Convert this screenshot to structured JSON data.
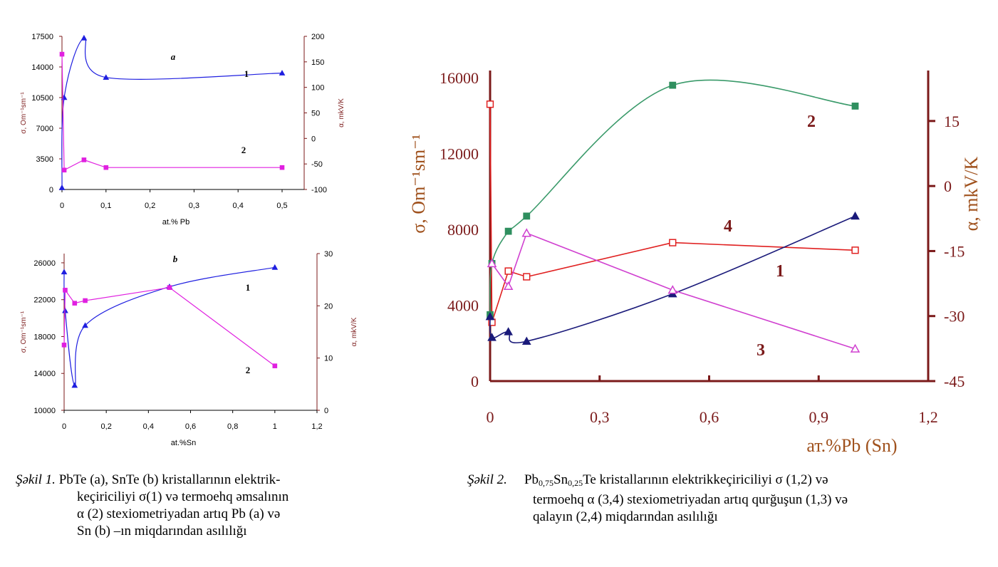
{
  "colors": {
    "axis_dark_red": "#7b1a1a",
    "blue": "#1f1fe0",
    "magenta": "#e020e0",
    "navy": "#1a1a7a",
    "green": "#3a9a6a",
    "green_marker": "#2f8f5f",
    "red": "#e02020",
    "violet": "#d040d0"
  },
  "chart_data": [
    {
      "id": "fig1a",
      "type": "line",
      "title": "a",
      "xlabel": "at.% Pb",
      "ylabel_left": "σ, Om⁻¹sm⁻¹",
      "ylabel_right": "α, mkV/K",
      "xlim": [
        0,
        0.55
      ],
      "ylim_left": [
        0,
        17500
      ],
      "ylim_right": [
        -100,
        200
      ],
      "x_ticks": [
        "0",
        "0,1",
        "0,2",
        "0,3",
        "0,4",
        "0,5"
      ],
      "y_left_ticks": [
        "0",
        "3500",
        "7000",
        "10500",
        "14000",
        "17500"
      ],
      "y_right_ticks": [
        "-100",
        "-50",
        "0",
        "50",
        "100",
        "150",
        "200"
      ],
      "series": [
        {
          "name": "1",
          "axis": "left",
          "color": "#1f1fe0",
          "marker": "triangle",
          "x": [
            0,
            0.005,
            0.05,
            0.1,
            0.5
          ],
          "y": [
            200,
            10500,
            17300,
            12800,
            13300
          ]
        },
        {
          "name": "2",
          "axis": "right",
          "color": "#e020e0",
          "marker": "square",
          "x": [
            0,
            0.005,
            0.05,
            0.1,
            0.5
          ],
          "y": [
            165,
            -62,
            -42,
            -57,
            -57
          ]
        }
      ]
    },
    {
      "id": "fig1b",
      "type": "line",
      "title": "b",
      "xlabel": "at.%Sn",
      "ylabel_left": "σ, Om⁻¹sm⁻¹",
      "ylabel_right": "α, mkV/K",
      "xlim": [
        0,
        1.2
      ],
      "ylim_left": [
        10000,
        27000
      ],
      "ylim_right": [
        0,
        30
      ],
      "x_ticks": [
        "0",
        "0,2",
        "0,4",
        "0,6",
        "0,8",
        "1",
        "1,2"
      ],
      "y_left_ticks": [
        "10000",
        "14000",
        "18000",
        "22000",
        "26000"
      ],
      "y_right_ticks": [
        "0",
        "10",
        "20",
        "30"
      ],
      "series": [
        {
          "name": "1",
          "axis": "left",
          "color": "#1f1fe0",
          "marker": "triangle",
          "x": [
            0,
            0.005,
            0.05,
            0.1,
            0.5,
            1.0
          ],
          "y": [
            25000,
            20800,
            12700,
            19200,
            23400,
            25500
          ]
        },
        {
          "name": "2",
          "axis": "right",
          "color": "#e020e0",
          "marker": "square",
          "x": [
            0,
            0.005,
            0.05,
            0.1,
            0.5,
            1.0
          ],
          "y": [
            12.5,
            23,
            20.5,
            21,
            23.5,
            8.5
          ]
        }
      ]
    },
    {
      "id": "fig2",
      "type": "line",
      "xlabel": "ат.%Pb (Sn)",
      "ylabel_left": "σ, Om⁻¹sm⁻¹",
      "ylabel_right": "α, mkV/K",
      "xlim": [
        0,
        1.2
      ],
      "ylim_left": [
        0,
        16000
      ],
      "ylim_right": [
        -45,
        25
      ],
      "x_ticks": [
        "0",
        "0,3",
        "0,6",
        "0,9",
        "1,2"
      ],
      "y_left_ticks": [
        "0",
        "4000",
        "8000",
        "12000",
        "16000"
      ],
      "y_right_ticks": [
        "-45",
        "-30",
        "-15",
        "0",
        "15"
      ],
      "series": [
        {
          "name": "1",
          "axis": "left",
          "color": "#e02020",
          "marker": "square-open",
          "x": [
            0,
            0.005,
            0.05,
            0.1,
            0.5,
            1.0
          ],
          "y": [
            14600,
            3100,
            5800,
            5500,
            7300,
            6900
          ]
        },
        {
          "name": "2",
          "axis": "left",
          "color": "#3a9a6a",
          "marker": "square",
          "x": [
            0,
            0.005,
            0.05,
            0.1,
            0.5,
            1.0
          ],
          "y": [
            3500,
            6200,
            7900,
            8700,
            15600,
            14500
          ]
        },
        {
          "name": "3",
          "axis": "left",
          "color": "#1a1a7a",
          "marker": "triangle",
          "x": [
            0,
            0.005,
            0.05,
            0.1,
            0.5,
            1.0
          ],
          "y": [
            3400,
            2300,
            2600,
            2100,
            4600,
            8700
          ]
        },
        {
          "name": "4",
          "axis": "left",
          "color": "#d040d0",
          "marker": "triangle-open",
          "x": [
            0.005,
            0.05,
            0.1,
            0.5,
            1.0
          ],
          "y": [
            6200,
            5000,
            7800,
            4800,
            1700
          ]
        }
      ],
      "curve_labels": [
        "1",
        "2",
        "3",
        "4"
      ]
    }
  ],
  "captions": {
    "fig1_label": "Şəkil 1.",
    "fig1_line1": " PbTe (a), SnTe (b) kristallarının elektrik-",
    "fig1_line2": "keçiriciliyi σ(1) və termoehq əmsalının",
    "fig1_line3": "α (2) stexiometriyadan artıq Pb (a) və",
    "fig1_line4": "Sn (b) –ın miqdarından asılılığı",
    "fig2_label": "Şəkil 2.",
    "fig2_formula_a": "Pb",
    "fig2_sub1": "0,75",
    "fig2_formula_b": "Sn",
    "fig2_sub2": "0,25",
    "fig2_line1_rest": "Te kristallarının elektrikkeçiriciliyi σ (1,2) və",
    "fig2_line2": "termoehq α (3,4) stexiometriyadan artıq qurğuşun (1,3) və",
    "fig2_line3": "qalayın (2,4) miqdarından asılılığı"
  }
}
